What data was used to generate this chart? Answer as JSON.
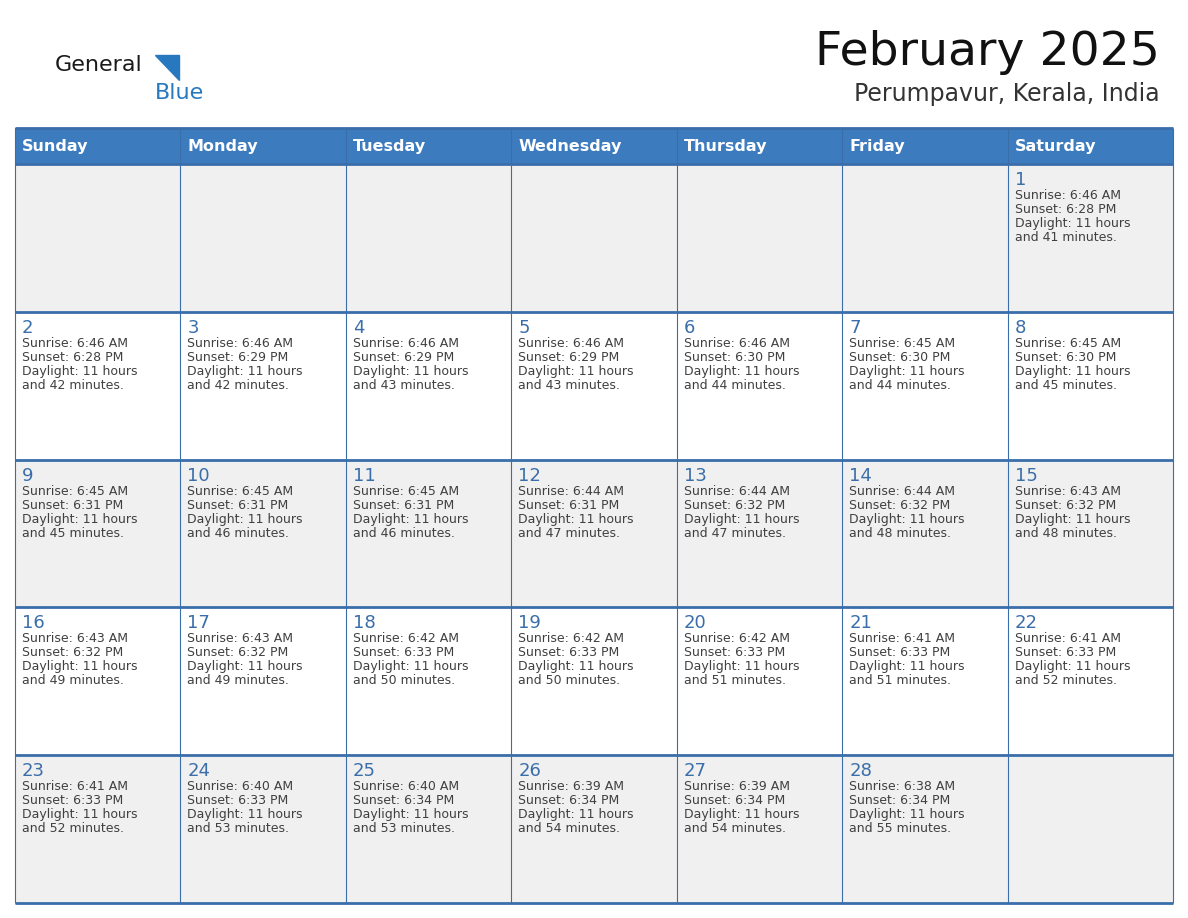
{
  "title": "February 2025",
  "subtitle": "Perumpavur, Kerala, India",
  "days_of_week": [
    "Sunday",
    "Monday",
    "Tuesday",
    "Wednesday",
    "Thursday",
    "Friday",
    "Saturday"
  ],
  "header_bg": "#3D7BBF",
  "header_text": "#FFFFFF",
  "cell_bg_light": "#F0F0F0",
  "cell_bg_white": "#FFFFFF",
  "cell_border_color": "#3A6EAA",
  "day_num_color": "#3A6EAA",
  "text_color": "#404040",
  "logo_general_color": "#1A1A1A",
  "logo_blue_color": "#2878C0",
  "weeks": [
    [
      {
        "day": null,
        "sunrise": null,
        "sunset": null,
        "daylight": null
      },
      {
        "day": null,
        "sunrise": null,
        "sunset": null,
        "daylight": null
      },
      {
        "day": null,
        "sunrise": null,
        "sunset": null,
        "daylight": null
      },
      {
        "day": null,
        "sunrise": null,
        "sunset": null,
        "daylight": null
      },
      {
        "day": null,
        "sunrise": null,
        "sunset": null,
        "daylight": null
      },
      {
        "day": null,
        "sunrise": null,
        "sunset": null,
        "daylight": null
      },
      {
        "day": 1,
        "sunrise": "6:46 AM",
        "sunset": "6:28 PM",
        "daylight": "11 hours and 41 minutes."
      }
    ],
    [
      {
        "day": 2,
        "sunrise": "6:46 AM",
        "sunset": "6:28 PM",
        "daylight": "11 hours and 42 minutes."
      },
      {
        "day": 3,
        "sunrise": "6:46 AM",
        "sunset": "6:29 PM",
        "daylight": "11 hours and 42 minutes."
      },
      {
        "day": 4,
        "sunrise": "6:46 AM",
        "sunset": "6:29 PM",
        "daylight": "11 hours and 43 minutes."
      },
      {
        "day": 5,
        "sunrise": "6:46 AM",
        "sunset": "6:29 PM",
        "daylight": "11 hours and 43 minutes."
      },
      {
        "day": 6,
        "sunrise": "6:46 AM",
        "sunset": "6:30 PM",
        "daylight": "11 hours and 44 minutes."
      },
      {
        "day": 7,
        "sunrise": "6:45 AM",
        "sunset": "6:30 PM",
        "daylight": "11 hours and 44 minutes."
      },
      {
        "day": 8,
        "sunrise": "6:45 AM",
        "sunset": "6:30 PM",
        "daylight": "11 hours and 45 minutes."
      }
    ],
    [
      {
        "day": 9,
        "sunrise": "6:45 AM",
        "sunset": "6:31 PM",
        "daylight": "11 hours and 45 minutes."
      },
      {
        "day": 10,
        "sunrise": "6:45 AM",
        "sunset": "6:31 PM",
        "daylight": "11 hours and 46 minutes."
      },
      {
        "day": 11,
        "sunrise": "6:45 AM",
        "sunset": "6:31 PM",
        "daylight": "11 hours and 46 minutes."
      },
      {
        "day": 12,
        "sunrise": "6:44 AM",
        "sunset": "6:31 PM",
        "daylight": "11 hours and 47 minutes."
      },
      {
        "day": 13,
        "sunrise": "6:44 AM",
        "sunset": "6:32 PM",
        "daylight": "11 hours and 47 minutes."
      },
      {
        "day": 14,
        "sunrise": "6:44 AM",
        "sunset": "6:32 PM",
        "daylight": "11 hours and 48 minutes."
      },
      {
        "day": 15,
        "sunrise": "6:43 AM",
        "sunset": "6:32 PM",
        "daylight": "11 hours and 48 minutes."
      }
    ],
    [
      {
        "day": 16,
        "sunrise": "6:43 AM",
        "sunset": "6:32 PM",
        "daylight": "11 hours and 49 minutes."
      },
      {
        "day": 17,
        "sunrise": "6:43 AM",
        "sunset": "6:32 PM",
        "daylight": "11 hours and 49 minutes."
      },
      {
        "day": 18,
        "sunrise": "6:42 AM",
        "sunset": "6:33 PM",
        "daylight": "11 hours and 50 minutes."
      },
      {
        "day": 19,
        "sunrise": "6:42 AM",
        "sunset": "6:33 PM",
        "daylight": "11 hours and 50 minutes."
      },
      {
        "day": 20,
        "sunrise": "6:42 AM",
        "sunset": "6:33 PM",
        "daylight": "11 hours and 51 minutes."
      },
      {
        "day": 21,
        "sunrise": "6:41 AM",
        "sunset": "6:33 PM",
        "daylight": "11 hours and 51 minutes."
      },
      {
        "day": 22,
        "sunrise": "6:41 AM",
        "sunset": "6:33 PM",
        "daylight": "11 hours and 52 minutes."
      }
    ],
    [
      {
        "day": 23,
        "sunrise": "6:41 AM",
        "sunset": "6:33 PM",
        "daylight": "11 hours and 52 minutes."
      },
      {
        "day": 24,
        "sunrise": "6:40 AM",
        "sunset": "6:33 PM",
        "daylight": "11 hours and 53 minutes."
      },
      {
        "day": 25,
        "sunrise": "6:40 AM",
        "sunset": "6:34 PM",
        "daylight": "11 hours and 53 minutes."
      },
      {
        "day": 26,
        "sunrise": "6:39 AM",
        "sunset": "6:34 PM",
        "daylight": "11 hours and 54 minutes."
      },
      {
        "day": 27,
        "sunrise": "6:39 AM",
        "sunset": "6:34 PM",
        "daylight": "11 hours and 54 minutes."
      },
      {
        "day": 28,
        "sunrise": "6:38 AM",
        "sunset": "6:34 PM",
        "daylight": "11 hours and 55 minutes."
      },
      {
        "day": null,
        "sunrise": null,
        "sunset": null,
        "daylight": null
      }
    ]
  ]
}
